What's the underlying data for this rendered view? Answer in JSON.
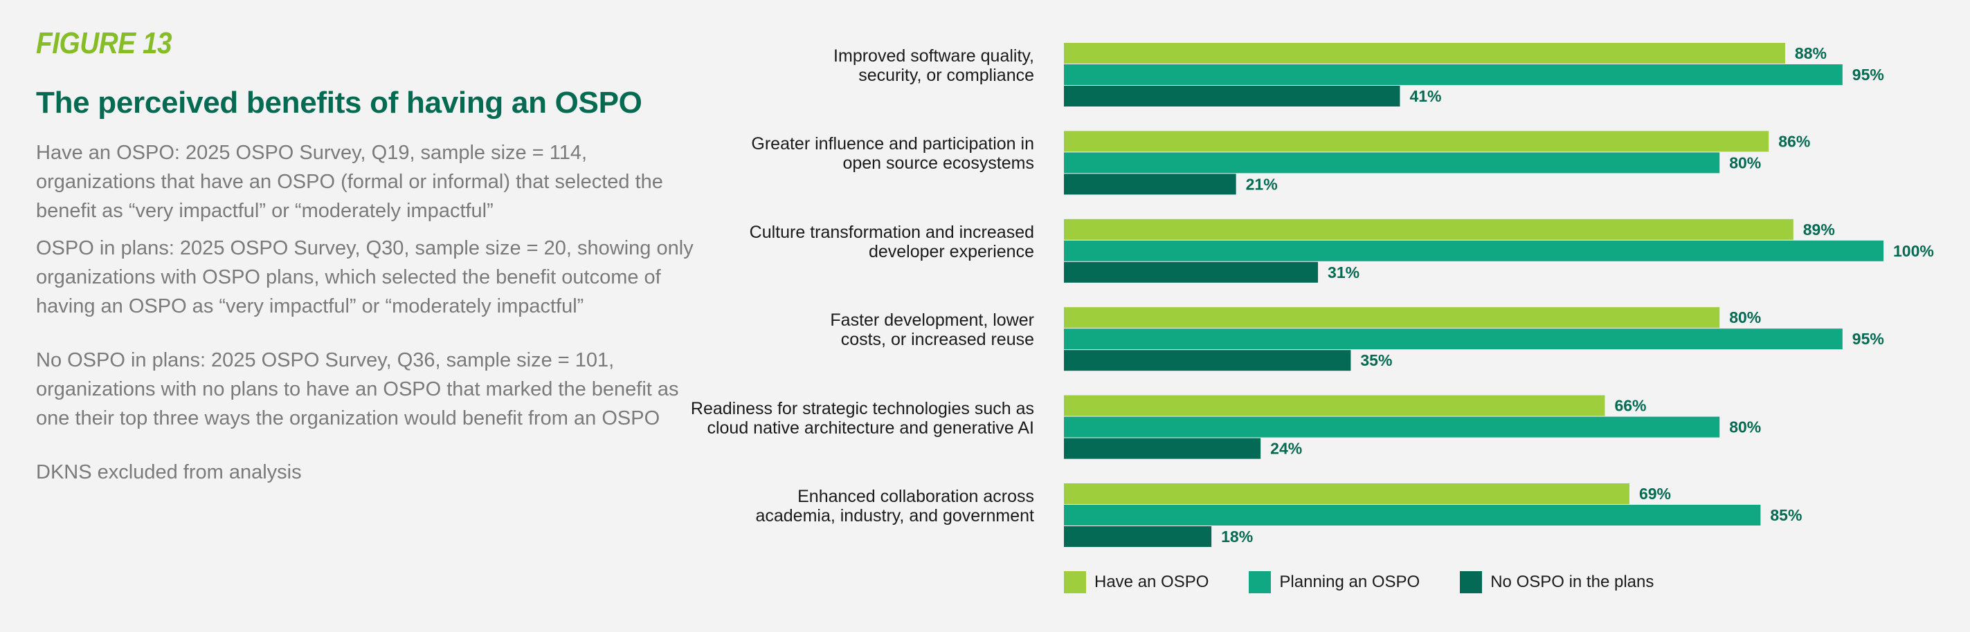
{
  "figure_label": "FIGURE 13",
  "notes": [
    "Have an OSPO: 2025 OSPO Survey, Q19, sample size = 114, organizations that have an OSPO (formal or informal) that selected the benefit as “very impactful” or “moderately impactful”",
    "OSPO in plans: 2025 OSPO Survey, Q30, sample size = 20, showing only organizations with OSPO plans, which selected the benefit outcome of having an OSPO as “very impactful” or “moderately impactful”",
    "No OSPO in plans: 2025 OSPO Survey, Q36, sample size = 101, organizations with no plans to have an OSPO that marked the benefit as one their top three ways the organization would benefit from an OSPO",
    "DKNS excluded from analysis"
  ],
  "chart_data": {
    "type": "bar",
    "orientation": "horizontal",
    "title": "The perceived benefits of having an OSPO",
    "categories": [
      "Improved software quality, security, or compliance",
      "Greater influence and participation in open source ecosystems",
      "Culture transformation and increased developer experience",
      "Faster development, lower costs, or increased reuse",
      "Readiness for strategic technologies such as cloud native architecture and generative AI",
      "Enhanced collaboration across academia, industry, and government"
    ],
    "category_lines": [
      [
        "Improved software quality,",
        "security, or compliance"
      ],
      [
        "Greater influence and participation in",
        "open source ecosystems"
      ],
      [
        "Culture transformation and increased",
        "developer experience"
      ],
      [
        "Faster development, lower",
        "costs, or increased reuse"
      ],
      [
        "Readiness for strategic technologies such as",
        "cloud native architecture and generative AI"
      ],
      [
        "Enhanced collaboration across",
        "academia, industry, and government"
      ]
    ],
    "series": [
      {
        "name": "Have an OSPO",
        "color": "#9fce3c",
        "values": [
          88,
          86,
          89,
          80,
          66,
          69
        ]
      },
      {
        "name": "Planning an OSPO",
        "color": "#10a882",
        "values": [
          95,
          80,
          100,
          95,
          80,
          85
        ]
      },
      {
        "name": "No OSPO in the plans",
        "color": "#046a56",
        "values": [
          41,
          21,
          31,
          35,
          24,
          18
        ]
      }
    ],
    "value_suffix": "%",
    "xlim": [
      0,
      100
    ],
    "label_color": "#046a51",
    "legend_position": "bottom",
    "grid": false
  }
}
